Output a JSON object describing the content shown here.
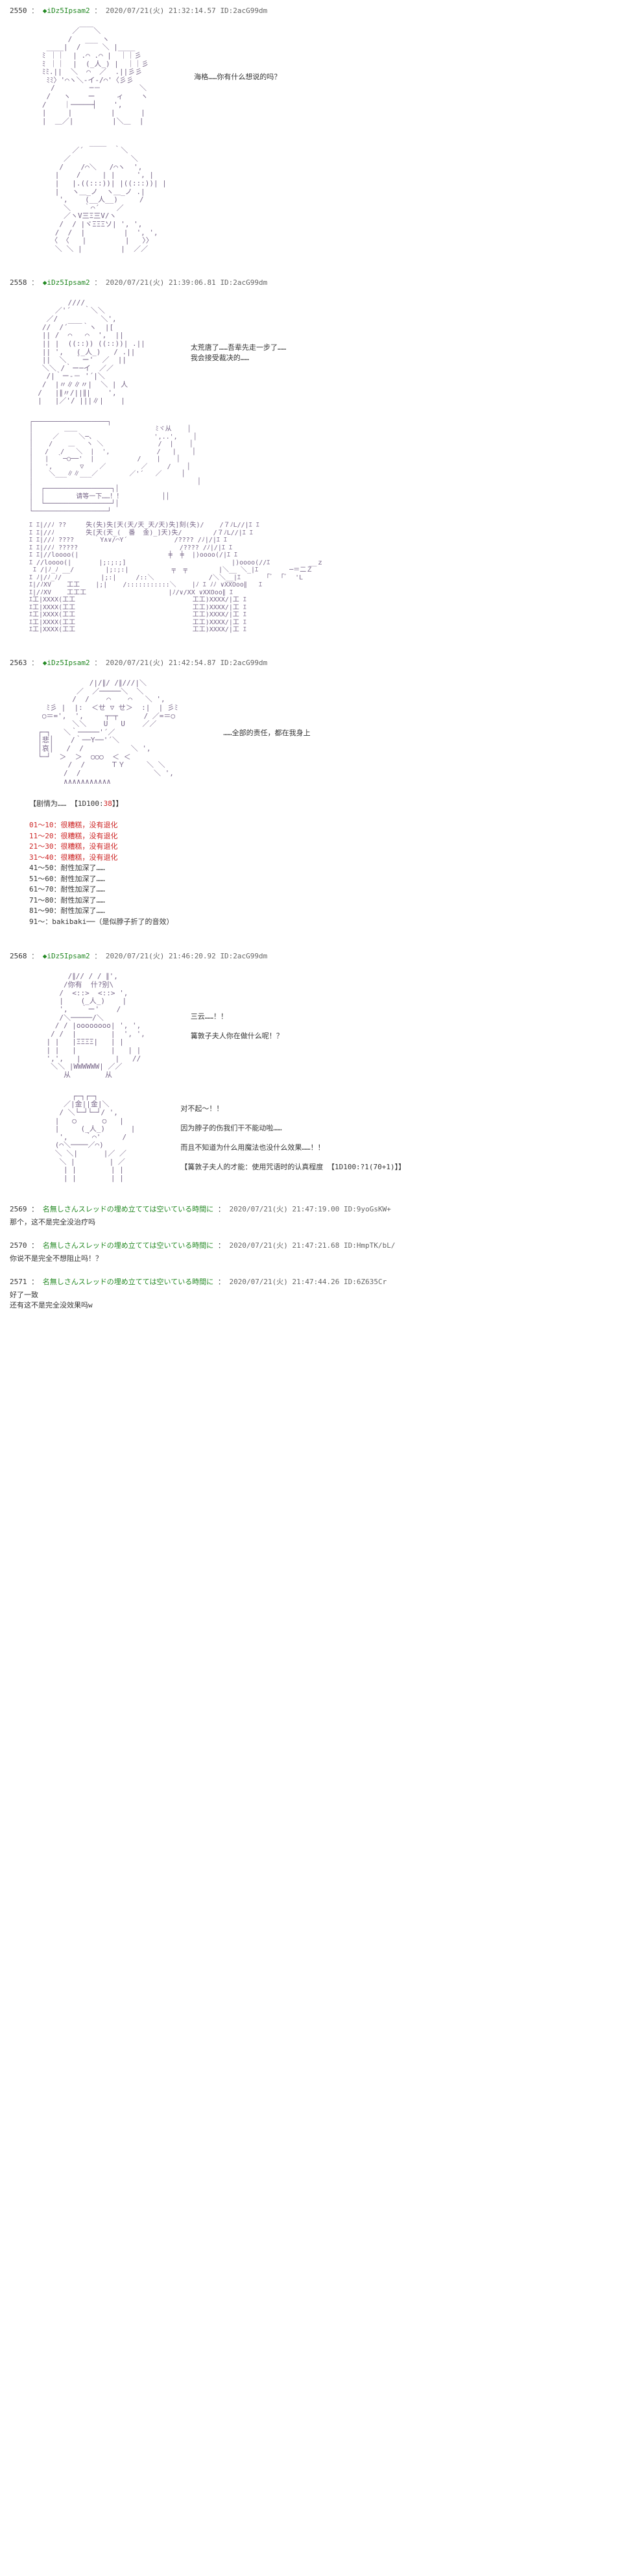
{
  "posts": [
    {
      "num": "2550",
      "trip": "◆iDz5Ipsam2",
      "date": "2020/07/21(火) 21:32:14.57",
      "id": "ID:2acG99dm",
      "dialogue1": "海格……你有什么想说的吗？",
      "aa1": "          ／￣￣＼\n         /   ___ ヽ\n    ____|  /     ＼ |____\n   ﾐ ｜｜  | .⌒ .⌒ |  ｜｜彡\n   ﾐ ｜｜  |  (_人_) |  ｜｜彡\n   ﾐﾐ.||  ＼  ⌒  ／  .||彡彡\n    ﾐﾐ〉'⌒ヽ＼-イ-/⌒'〈彡彡\n     /        ─－         ＼\n    /   ヽ    ー     ィ    ヽ\n   /    ｜─────┤    ',\n   |     |         |      |\n   |  ＿／|         |＼＿  |",
      "aa2": "              ____\n          ／´       ｀＼\n        ／              ＼\n       /    /⌒＼   /⌒ヽ  ',\n      |    /     | |     ', |\n      |   |.((:::))| |((:::))| |\n      |   ヽ＿_ノ  ヽ＿_ノ .|\n       ',    (__人__)     /\n        ＼   ｀⌒´    ／\n        ／ヽV三Ξ三V/ヽ\n       /  / |ヾΞΞΞソ| ', ',\n      /  /  |         |  ', ',\n     〈 〈   |         |   〉〉\n      ＼ ＼ |         |  ／／"
    },
    {
      "num": "2558",
      "trip": "◆iDz5Ipsam2",
      "date": "2020/07/21(火) 21:39:06.81",
      "id": "ID:2acG99dm",
      "dialogue1": "太荒唐了……吾辈先走一步了……",
      "dialogue2": "我会接受裁决的……",
      "dialogue3": "请等一下……！！",
      "aa1": "         //// \n      ／'´   ｀＼＼\n    ／/          ＼',\n   //  /´￣￣｀ヽ  |[\n   || /  ⌒   ⌒  ',  ||\n   || |  ((::)) ((::))| .||\n   || ',   (_人_)   / .||\n   ||  ＼  ｀ー'  ／  ||\n   ＼＼ /｀ー─イ  ／／\n    /|｀ー‐－ '´|＼\n   /  |〃∥∥〃|  ＼ | 人\n  /   |∥〃/||∥|    ',\n  |   |／'/ |||∥|    |",
      "aa2": "┌───────────────────┐\n│        ＿＿                    ﾐヾ从    │\n│     ／     ＼─、               ',..',    │\n│    /    ＿   ヽ ＼              /  |    │\n│   /   /   ＼  |  ',            /   |    │\n│   |  ｀─○──'  |           /    |    │\n│   ',       ▽    ／         ／     /    │\n│    ＼___∥∥___／        ／'´   ／     │\n│                                          │\n│  ┌─────────────────┐│\n│  │        请等一下……！！          ││\n│  └─────────────────┘│\n└───────────────────┘",
      "aa3": "ｴ ｴ|//ﾉ ??     失(失)失[天(天/天_天/天)失]刻(失)/    /７ﾉL//|ｴ ｴ\nｴ ｴ|//ﾉ        失[天(天_(  番  金)_]天)失/        /７ﾉL//|ｴ ｴ\nｴ ｴ|//ﾉ ????     ｀Y∧∨/⌒Y´            /???? /ﾉ|/|ｴ ｴ\nｴ ｴ|//ﾉ ?????                          /???? /ﾉ|/|ｴ ｴ\nｴ ｴ|//loooo(|                       ╪  ╪  |)oooo(/|ｴ ｴ\nｴ //loooo(|       |;:;:;]                           |)oooo(//ｴ          __ｚ\n ｴ /|ﾉ_ﾉ __/        |;:;:|           ╤  ╤        |＼__ ＼_|ｴ        ─＝二Ｚ\nｴ ﾉ|/ﾉ_ﾉ/          |;:|     /::＼              /＼＼__|ｴ    　 ｢ﾞ  ｢ﾞ  'L\nｴ|/ﾉXV    工工    |;|    /:::::::::::＼    |ﾉ ｴ ﾉﾉ ∨XXOoo∥   ｴ\nｴ|/ﾉXV    工工工                     |ﾉ/∨/XX ∨XXOoo∥ ｴ\nｴ工|XXXX(工工                              工工)XXXX/|工 ｴ\nｴ工|XXXX(工工                              工工)XXXX/|工 ｴ\nｴ工|XXXX(工工                              工工)XXXX/|工 ｴ\nｴ工|XXXX(工工                              工工)XXXX/|工 ｴ\nｴ工|XXXX(工工                              工工)XXXX/|工 ｴ"
    },
    {
      "num": "2563",
      "trip": "◆iDz5Ipsam2",
      "date": "2020/07/21(火) 21:42:54.87",
      "id": "ID:2acG99dm",
      "dialogue1": "……全部的责任，都在我身上",
      "aa1": "              /|/∥/ /∥///|＼\n           ／  ／─────＼  ＼\n          /  /    ⌒    ⌒   ＼ ',\n    ﾐ彡 |  |:  ＜せ ▽ せ＞  :|  | 彡ﾐ\n   ○＝=',  ',     ┬─┬      / ／=＝○\n          ＼＼    U   U    ／／\n  ┌─┐   ＼｀─────'´／\n  │悲│    /｀──Y──'´＼\n  │哀│   /  /           ＼ ',\n  └─┘  ＞  ＞  ○○○  ＜ ＜\n         /  /      ＴＹ     ＼ ＼\n        /  /                 ＼ ',\n        ∧∧∧∧∧∧∧∧∧∧∧",
      "roll_header": "【剧情为…… 【1D100:",
      "roll_value": "38",
      "roll_header2": "】】",
      "rolls": [
        {
          "range": "01～10",
          "text": "很糟糕，没有退化",
          "red": true
        },
        {
          "range": "11～20",
          "text": "很糟糕，没有退化",
          "red": true
        },
        {
          "range": "21～30",
          "text": "很糟糕，没有退化",
          "red": true
        },
        {
          "range": "31～40",
          "text": "很糟糕，没有退化",
          "red": true
        },
        {
          "range": "41～50",
          "text": "耐性加深了……",
          "red": false
        },
        {
          "range": "51～60",
          "text": "耐性加深了……",
          "red": false
        },
        {
          "range": "61～70",
          "text": "耐性加深了……",
          "red": false
        },
        {
          "range": "71～80",
          "text": "耐性加深了……",
          "red": false
        },
        {
          "range": "81～90",
          "text": "耐性加深了……",
          "red": false
        },
        {
          "range": "91～",
          "text": "bakibaki──（是似脖子折了的音效）",
          "red": false
        }
      ]
    },
    {
      "num": "2568",
      "trip": "◆iDz5Ipsam2",
      "date": "2020/07/21(火) 21:46:20.92",
      "id": "ID:2acG99dm",
      "dialogue1": "三云……！！",
      "dialogue2": "篝敦子夫人你在做什么呢！？",
      "dialogue3": "对不起～！！",
      "dialogue4": "因为脖子的伤我们干不能动啦……",
      "dialogue5": "而且不知道为什么用魔法也没什么效果……！！",
      "dialogue6": "【篝敦子夫人的才能：使用咒语时的认真程度 【1D100:?1(70+1)】】",
      "aa1": "         /∥// / / ∥',\n        /你有  什?别\\\n       /  <::>  <::> ',\n       |    (_人_)    |\n       ',   ｀ー'    /\n       /＼─────/＼\n      / / |oooooooo| ', ',\n     / /  |        |  ', ',\n    | |   |ΞΞΞΞ|   | |\n    | |   |        |   | |\n    ',',   |        |   //\n     ＼＼ |WWWWWW| ／／\n        从        从",
      "aa2": "          ┌─┐┌─┐\n        ／|金||金|＼\n       / ＼└─┘└─┘/ ',\n      |   ○      ○   |\n      |     (_人_)      |\n       ',    ｀⌒'     /\n      (⌒＼────／⌒)\n      ＼ ＼|      |／ ／\n       ＼ |        | ／\n        | |        | |\n        | |        | |"
    }
  ],
  "replies": [
    {
      "num": "2569",
      "name": "名無しさんスレッドの埋め立てては空いている時間に",
      "date": "2020/07/21(火) 21:47:19.00",
      "id": "ID:9yoGsKW+",
      "body": "那个，这不是完全没治疗吗"
    },
    {
      "num": "2570",
      "name": "名無しさんスレッドの埋め立てては空いている時間に",
      "date": "2020/07/21(火) 21:47:21.68",
      "id": "ID:HmpTK/bL/",
      "body": "你说不是完全不想阻止吗！？"
    },
    {
      "num": "2571",
      "name": "名無しさんスレッドの埋め立てては空いている時間に",
      "date": "2020/07/21(火) 21:47:44.26",
      "id": "ID:6Z635Cr",
      "body": "好了一致\n还有这不是完全没效果吗w"
    }
  ]
}
